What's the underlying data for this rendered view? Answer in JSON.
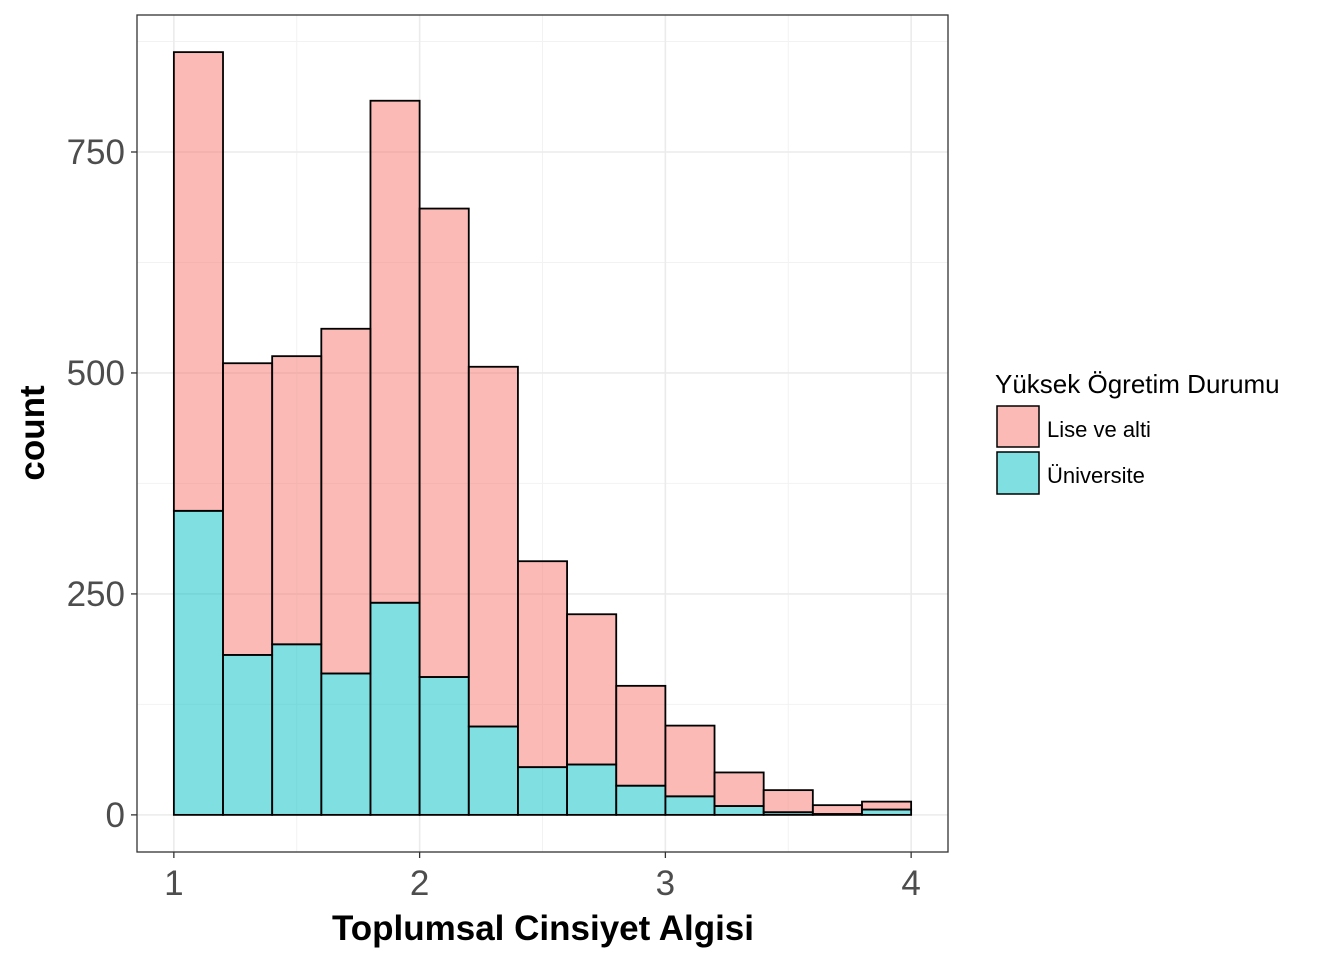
{
  "chart_data": {
    "type": "bar",
    "stacked": true,
    "histogram": true,
    "bin_edges": [
      1.0,
      1.2,
      1.4,
      1.6,
      1.8,
      2.0,
      2.2,
      2.4,
      2.6,
      2.8,
      3.0,
      3.2,
      3.4,
      3.6,
      3.8,
      4.0
    ],
    "series": [
      {
        "name": "Lise ve alti",
        "color": "#F8766D",
        "values": [
          519,
          330,
          326,
          390,
          568,
          530,
          407,
          233,
          170,
          113,
          80,
          38,
          25,
          10,
          9
        ]
      },
      {
        "name": "Üniversite",
        "color": "#00BFC4",
        "values": [
          344,
          181,
          193,
          160,
          240,
          156,
          100,
          54,
          57,
          33,
          21,
          10,
          3,
          1,
          6
        ]
      }
    ],
    "fill_alpha": 0.5,
    "xlabel": "Toplumsal Cinsiyet Algisi",
    "ylabel": "count",
    "xlim": [
      0.85,
      4.15
    ],
    "ylim": [
      -42,
      905
    ],
    "xticks": [
      1,
      2,
      3,
      4
    ],
    "xtick_labels": [
      "1",
      "2",
      "3",
      "4"
    ],
    "yticks": [
      0,
      250,
      500,
      750
    ],
    "ytick_labels": [
      "0",
      "250",
      "500",
      "750"
    ],
    "grid": true,
    "legend": {
      "title": "Yüksek Ögretim Durumu",
      "position": "right",
      "entries": [
        "Lise ve alti",
        "Üniversite"
      ]
    }
  }
}
